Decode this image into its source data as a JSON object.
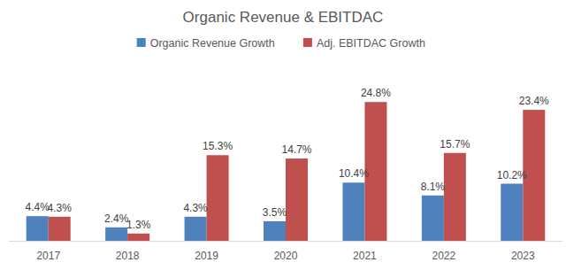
{
  "chart_data": {
    "type": "bar",
    "title": "Organic Revenue & EBITDAC",
    "categories": [
      "2017",
      "2018",
      "2019",
      "2020",
      "2021",
      "2022",
      "2023"
    ],
    "series": [
      {
        "name": "Organic Revenue Growth",
        "color": "#4f81bd",
        "values": [
          4.4,
          2.4,
          4.3,
          3.5,
          10.4,
          8.1,
          10.2
        ],
        "value_labels": [
          "4.4%",
          "2.4%",
          "4.3%",
          "3.5%",
          "10.4%",
          "8.1%",
          "10.2%"
        ]
      },
      {
        "name": "Adj. EBITDAC Growth",
        "color": "#c0504d",
        "values": [
          4.3,
          1.3,
          15.3,
          14.7,
          24.8,
          15.7,
          23.4
        ],
        "value_labels": [
          "4.3%",
          "1.3%",
          "15.3%",
          "14.7%",
          "24.8%",
          "15.7%",
          "23.4%"
        ]
      }
    ],
    "ylim": [
      0,
      28
    ],
    "legend": "top",
    "data_labels": true,
    "tick_labels": "x",
    "grid": false
  }
}
